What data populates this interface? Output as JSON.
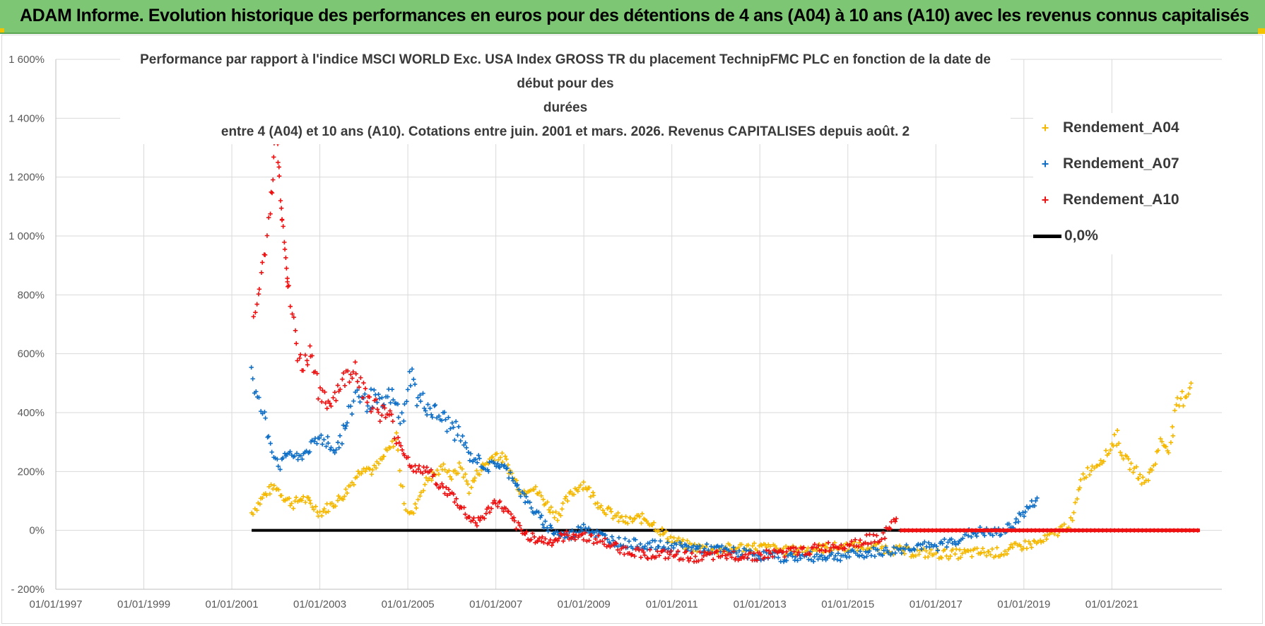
{
  "banner": {
    "title": "ADAM Informe. Evolution historique des performances en euros pour des détentions de 4 ans (A04) à 10 ans (A10) avec les revenus connus capitalisés"
  },
  "colors": {
    "banner_bg": "#7dc774",
    "a04": "#f5b800",
    "a07": "#0f6fc6",
    "a10": "#ee1111",
    "zero": "#000000"
  },
  "chart_data": {
    "type": "scatter",
    "title_lines": [
      "Performance par rapport à l'indice MSCI WORLD Exc. USA Index GROSS TR  du placement TechnipFMC PLC en fonction de la date de début pour des",
      "durées",
      "entre 4 (A04) et 10 ans (A10).  Cotations entre juin. 2001 et mars. 2026.  Revenus CAPITALISES depuis août. 2"
    ],
    "xlabel": "",
    "ylabel": "",
    "x_range": [
      1997.0,
      2023.5
    ],
    "ylim": [
      -200,
      1600
    ],
    "grid": true,
    "legend_position": "top-right",
    "y_ticks": [
      {
        "value": -200,
        "label": "- 200%"
      },
      {
        "value": 0,
        "label": "0%"
      },
      {
        "value": 200,
        "label": "200%"
      },
      {
        "value": 400,
        "label": "400%"
      },
      {
        "value": 600,
        "label": "600%"
      },
      {
        "value": 800,
        "label": "800%"
      },
      {
        "value": 1000,
        "label": "1 000%"
      },
      {
        "value": 1200,
        "label": "1 200%"
      },
      {
        "value": 1400,
        "label": "1 400%"
      },
      {
        "value": 1600,
        "label": "1 600%"
      }
    ],
    "x_ticks": [
      {
        "value": 1997,
        "label": "01/01/1997"
      },
      {
        "value": 1999,
        "label": "01/01/1999"
      },
      {
        "value": 2001,
        "label": "01/01/2001"
      },
      {
        "value": 2003,
        "label": "01/01/2003"
      },
      {
        "value": 2005,
        "label": "01/01/2005"
      },
      {
        "value": 2007,
        "label": "01/01/2007"
      },
      {
        "value": 2009,
        "label": "01/01/2009"
      },
      {
        "value": 2011,
        "label": "01/01/2011"
      },
      {
        "value": 2013,
        "label": "01/01/2013"
      },
      {
        "value": 2015,
        "label": "01/01/2015"
      },
      {
        "value": 2017,
        "label": "01/01/2017"
      },
      {
        "value": 2019,
        "label": "01/01/2019"
      },
      {
        "value": 2021,
        "label": "01/01/2021"
      }
    ],
    "series": [
      {
        "name": "Rendement_A04",
        "marker": "+",
        "points": [
          [
            2001.45,
            60
          ],
          [
            2001.6,
            90
          ],
          [
            2001.8,
            130
          ],
          [
            2002.0,
            150
          ],
          [
            2002.2,
            110
          ],
          [
            2002.4,
            90
          ],
          [
            2002.6,
            110
          ],
          [
            2002.8,
            90
          ],
          [
            2003.0,
            60
          ],
          [
            2003.2,
            80
          ],
          [
            2003.4,
            100
          ],
          [
            2003.6,
            130
          ],
          [
            2003.8,
            180
          ],
          [
            2004.0,
            220
          ],
          [
            2004.2,
            200
          ],
          [
            2004.4,
            240
          ],
          [
            2004.6,
            280
          ],
          [
            2004.75,
            320
          ],
          [
            2004.85,
            160
          ],
          [
            2004.95,
            80
          ],
          [
            2005.1,
            50
          ],
          [
            2005.2,
            90
          ],
          [
            2005.35,
            150
          ],
          [
            2005.5,
            180
          ],
          [
            2005.7,
            200
          ],
          [
            2005.85,
            220
          ],
          [
            2006.0,
            180
          ],
          [
            2006.2,
            220
          ],
          [
            2006.4,
            140
          ],
          [
            2006.6,
            200
          ],
          [
            2006.8,
            230
          ],
          [
            2007.0,
            260
          ],
          [
            2007.2,
            240
          ],
          [
            2007.4,
            180
          ],
          [
            2007.6,
            130
          ],
          [
            2007.8,
            150
          ],
          [
            2008.0,
            120
          ],
          [
            2008.2,
            80
          ],
          [
            2008.4,
            50
          ],
          [
            2008.6,
            100
          ],
          [
            2008.8,
            140
          ],
          [
            2009.0,
            160
          ],
          [
            2009.2,
            120
          ],
          [
            2009.4,
            80
          ],
          [
            2009.6,
            60
          ],
          [
            2009.8,
            40
          ],
          [
            2010.0,
            30
          ],
          [
            2010.2,
            40
          ],
          [
            2010.4,
            40
          ],
          [
            2010.6,
            20
          ],
          [
            2010.8,
            -10
          ],
          [
            2011.0,
            -30
          ],
          [
            2011.3,
            -50
          ],
          [
            2011.6,
            -60
          ],
          [
            2012.0,
            -65
          ],
          [
            2012.4,
            -60
          ],
          [
            2012.8,
            -55
          ],
          [
            2013.2,
            -60
          ],
          [
            2013.6,
            -70
          ],
          [
            2014.0,
            -65
          ],
          [
            2014.5,
            -60
          ],
          [
            2015.0,
            -55
          ],
          [
            2015.5,
            -55
          ],
          [
            2016.0,
            -65
          ],
          [
            2016.5,
            -75
          ],
          [
            2017.0,
            -80
          ],
          [
            2017.5,
            -80
          ],
          [
            2018.0,
            -75
          ],
          [
            2018.5,
            -75
          ],
          [
            2019.0,
            -50
          ],
          [
            2019.4,
            -40
          ],
          [
            2019.8,
            0
          ],
          [
            2020.1,
            30
          ],
          [
            2020.3,
            180
          ],
          [
            2020.6,
            220
          ],
          [
            2020.9,
            260
          ],
          [
            2021.1,
            320
          ],
          [
            2021.3,
            240
          ],
          [
            2021.55,
            200
          ],
          [
            2021.75,
            160
          ],
          [
            2021.95,
            220
          ],
          [
            2022.1,
            300
          ],
          [
            2022.3,
            280
          ],
          [
            2022.5,
            420
          ],
          [
            2022.7,
            470
          ],
          [
            2022.8,
            500
          ]
        ]
      },
      {
        "name": "Rendement_A07",
        "marker": "+",
        "points": [
          [
            2001.45,
            560
          ],
          [
            2001.55,
            460
          ],
          [
            2001.7,
            400
          ],
          [
            2001.8,
            340
          ],
          [
            2001.95,
            260
          ],
          [
            2002.1,
            220
          ],
          [
            2002.3,
            270
          ],
          [
            2002.5,
            240
          ],
          [
            2002.7,
            270
          ],
          [
            2002.9,
            300
          ],
          [
            2003.1,
            320
          ],
          [
            2003.3,
            270
          ],
          [
            2003.5,
            320
          ],
          [
            2003.7,
            400
          ],
          [
            2003.85,
            480
          ],
          [
            2004.0,
            430
          ],
          [
            2004.2,
            450
          ],
          [
            2004.4,
            420
          ],
          [
            2004.6,
            460
          ],
          [
            2004.8,
            400
          ],
          [
            2004.9,
            360
          ],
          [
            2005.0,
            510
          ],
          [
            2005.1,
            530
          ],
          [
            2005.2,
            450
          ],
          [
            2005.4,
            430
          ],
          [
            2005.6,
            400
          ],
          [
            2005.8,
            380
          ],
          [
            2006.0,
            350
          ],
          [
            2006.2,
            320
          ],
          [
            2006.4,
            250
          ],
          [
            2006.6,
            240
          ],
          [
            2006.8,
            210
          ],
          [
            2007.0,
            230
          ],
          [
            2007.2,
            210
          ],
          [
            2007.4,
            180
          ],
          [
            2007.6,
            120
          ],
          [
            2007.8,
            80
          ],
          [
            2008.0,
            40
          ],
          [
            2008.2,
            10
          ],
          [
            2008.4,
            -10
          ],
          [
            2008.6,
            -20
          ],
          [
            2008.8,
            -10
          ],
          [
            2009.0,
            20
          ],
          [
            2009.2,
            -5
          ],
          [
            2009.4,
            -20
          ],
          [
            2009.6,
            -30
          ],
          [
            2009.8,
            -40
          ],
          [
            2010.0,
            -45
          ],
          [
            2010.5,
            -50
          ],
          [
            2011.0,
            -55
          ],
          [
            2011.5,
            -60
          ],
          [
            2012.0,
            -65
          ],
          [
            2012.5,
            -75
          ],
          [
            2013.0,
            -85
          ],
          [
            2013.5,
            -90
          ],
          [
            2014.0,
            -90
          ],
          [
            2014.5,
            -88
          ],
          [
            2015.0,
            -85
          ],
          [
            2015.5,
            -75
          ],
          [
            2016.0,
            -70
          ],
          [
            2016.3,
            -60
          ],
          [
            2016.6,
            -50
          ],
          [
            2016.9,
            -60
          ],
          [
            2017.2,
            -45
          ],
          [
            2017.5,
            -30
          ],
          [
            2017.8,
            -10
          ],
          [
            2018.0,
            -5
          ],
          [
            2018.3,
            -10
          ],
          [
            2018.6,
            0
          ],
          [
            2018.8,
            30
          ],
          [
            2019.0,
            60
          ],
          [
            2019.2,
            90
          ],
          [
            2019.3,
            110
          ]
        ]
      },
      {
        "name": "Rendement_A10",
        "marker": "+",
        "points": [
          [
            2001.5,
            700
          ],
          [
            2001.6,
            800
          ],
          [
            2001.7,
            900
          ],
          [
            2001.8,
            1000
          ],
          [
            2001.9,
            1150
          ],
          [
            2001.95,
            1240
          ],
          [
            2002.0,
            1380
          ],
          [
            2002.05,
            1260
          ],
          [
            2002.1,
            1150
          ],
          [
            2002.15,
            1050
          ],
          [
            2002.2,
            980
          ],
          [
            2002.25,
            880
          ],
          [
            2002.3,
            800
          ],
          [
            2002.4,
            700
          ],
          [
            2002.5,
            600
          ],
          [
            2002.6,
            560
          ],
          [
            2002.7,
            580
          ],
          [
            2002.8,
            620
          ],
          [
            2002.9,
            540
          ],
          [
            2003.0,
            450
          ],
          [
            2003.2,
            430
          ],
          [
            2003.4,
            480
          ],
          [
            2003.6,
            520
          ],
          [
            2003.8,
            560
          ],
          [
            2004.0,
            470
          ],
          [
            2004.2,
            430
          ],
          [
            2004.4,
            400
          ],
          [
            2004.6,
            380
          ],
          [
            2004.8,
            300
          ],
          [
            2005.0,
            240
          ],
          [
            2005.2,
            200
          ],
          [
            2005.4,
            210
          ],
          [
            2005.6,
            180
          ],
          [
            2005.8,
            140
          ],
          [
            2006.0,
            120
          ],
          [
            2006.2,
            80
          ],
          [
            2006.4,
            40
          ],
          [
            2006.6,
            30
          ],
          [
            2006.8,
            60
          ],
          [
            2007.0,
            100
          ],
          [
            2007.2,
            70
          ],
          [
            2007.4,
            30
          ],
          [
            2007.6,
            -10
          ],
          [
            2007.8,
            -20
          ],
          [
            2008.0,
            -30
          ],
          [
            2008.2,
            -40
          ],
          [
            2008.4,
            -30
          ],
          [
            2008.6,
            -20
          ],
          [
            2008.8,
            -15
          ],
          [
            2009.0,
            -20
          ],
          [
            2009.3,
            -30
          ],
          [
            2009.6,
            -50
          ],
          [
            2010.0,
            -70
          ],
          [
            2010.5,
            -80
          ],
          [
            2011.0,
            -85
          ],
          [
            2011.5,
            -90
          ],
          [
            2012.0,
            -88
          ],
          [
            2012.5,
            -85
          ],
          [
            2013.0,
            -85
          ],
          [
            2013.5,
            -75
          ],
          [
            2014.0,
            -70
          ],
          [
            2014.4,
            -60
          ],
          [
            2014.8,
            -50
          ],
          [
            2015.2,
            -40
          ],
          [
            2015.5,
            -30
          ],
          [
            2015.8,
            -20
          ],
          [
            2016.0,
            20
          ],
          [
            2016.1,
            40
          ]
        ]
      }
    ],
    "zero_line": {
      "name": "0,0%",
      "x_start": 2001.45,
      "x_end": 2016.2,
      "value": 0
    },
    "a10_flat_zero": {
      "x_start": 2016.2,
      "x_end": 2023.0,
      "value": 0
    }
  }
}
